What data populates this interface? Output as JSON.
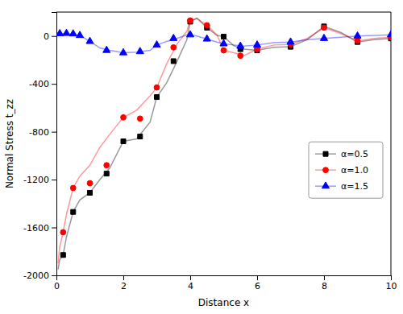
{
  "chart_data": {
    "type": "line",
    "xlabel": "Distance x",
    "ylabel": "Normal Stress t_zz",
    "xlim": [
      0,
      10
    ],
    "ylim": [
      -2000,
      200
    ],
    "xticks": [
      0,
      2,
      4,
      6,
      8,
      10
    ],
    "yticks": [
      -2000,
      -1600,
      -1200,
      -800,
      -400,
      0
    ],
    "grid": false,
    "legend": "right",
    "series": [
      {
        "name": "α=0.5",
        "color": "black",
        "marker": "square",
        "x": [
          0.2,
          0.5,
          1.0,
          1.5,
          2.0,
          2.5,
          3.0,
          3.5,
          4.0,
          4.5,
          5.0,
          5.5,
          6.0,
          7.0,
          8.0,
          9.0,
          10.0
        ],
        "values": [
          -1830,
          -1470,
          -1310,
          -1150,
          -880,
          -840,
          -510,
          -210,
          120,
          70,
          -5,
          -110,
          -120,
          -90,
          80,
          -50,
          -20
        ],
        "curve": {
          "x": [
            0.05,
            0.1,
            0.2,
            0.3,
            0.5,
            0.7,
            1.0,
            1.3,
            1.6,
            2.0,
            2.4,
            2.8,
            3.0,
            3.3,
            3.6,
            3.9,
            4.0,
            4.2,
            4.5,
            4.8,
            5.0,
            5.3,
            5.6,
            6.0,
            6.5,
            7.0,
            7.5,
            8.0,
            8.5,
            9.0,
            9.5,
            10.0
          ],
          "values": [
            -1950,
            -1870,
            -1830,
            -1680,
            -1470,
            -1370,
            -1310,
            -1200,
            -1100,
            -880,
            -860,
            -720,
            -510,
            -390,
            -215,
            -30,
            120,
            150,
            70,
            5,
            -5,
            -80,
            -110,
            -120,
            -95,
            -90,
            -30,
            80,
            30,
            -50,
            -30,
            -20
          ]
        }
      },
      {
        "name": "α=1.0",
        "color": "red",
        "marker": "circle",
        "x": [
          0.2,
          0.5,
          1.0,
          1.5,
          2.0,
          2.5,
          3.0,
          3.5,
          4.0,
          4.5,
          5.0,
          5.5,
          6.0,
          7.0,
          8.0,
          9.0,
          10.0
        ],
        "values": [
          -1640,
          -1270,
          -1230,
          -1080,
          -680,
          -690,
          -430,
          -95,
          130,
          90,
          -120,
          -165,
          -110,
          -70,
          70,
          -40,
          -10
        ],
        "curve": {
          "x": [
            0.05,
            0.1,
            0.2,
            0.3,
            0.5,
            0.7,
            1.0,
            1.3,
            1.6,
            2.0,
            2.4,
            2.8,
            3.0,
            3.3,
            3.6,
            3.9,
            4.0,
            4.2,
            4.5,
            4.8,
            5.0,
            5.3,
            5.6,
            6.0,
            6.5,
            7.0,
            7.5,
            8.0,
            8.5,
            9.0,
            9.5,
            10.0
          ],
          "values": [
            -1900,
            -1760,
            -1640,
            -1490,
            -1270,
            -1170,
            -1080,
            -930,
            -820,
            -680,
            -620,
            -500,
            -430,
            -230,
            -70,
            40,
            130,
            145,
            90,
            10,
            -120,
            -140,
            -165,
            -110,
            -75,
            -70,
            -20,
            70,
            20,
            -40,
            -20,
            -10
          ]
        }
      },
      {
        "name": "α=1.5",
        "color": "blue",
        "marker": "triangle",
        "x": [
          0.1,
          0.3,
          0.5,
          0.7,
          1.0,
          1.5,
          2.0,
          2.5,
          3.0,
          3.5,
          4.0,
          4.5,
          5.0,
          5.5,
          6.0,
          7.0,
          8.0,
          9.0,
          10.0
        ],
        "values": [
          20,
          22,
          18,
          5,
          -45,
          -120,
          -140,
          -130,
          -75,
          -20,
          10,
          -25,
          -65,
          -85,
          -75,
          -50,
          -20,
          0,
          10
        ],
        "curve": {
          "x": [
            0.05,
            0.1,
            0.2,
            0.3,
            0.5,
            0.7,
            1.0,
            1.3,
            1.6,
            2.0,
            2.4,
            2.8,
            3.0,
            3.3,
            3.6,
            3.9,
            4.0,
            4.2,
            4.5,
            4.8,
            5.0,
            5.3,
            5.6,
            6.0,
            6.5,
            7.0,
            7.5,
            8.0,
            8.5,
            9.0,
            9.5,
            10.0
          ],
          "values": [
            25,
            22,
            20,
            18,
            15,
            5,
            -45,
            -100,
            -120,
            -140,
            -135,
            -120,
            -75,
            -45,
            -20,
            10,
            10,
            0,
            -25,
            -50,
            -65,
            -75,
            -85,
            -75,
            -55,
            -50,
            -30,
            -20,
            -10,
            0,
            5,
            10
          ]
        }
      }
    ]
  }
}
